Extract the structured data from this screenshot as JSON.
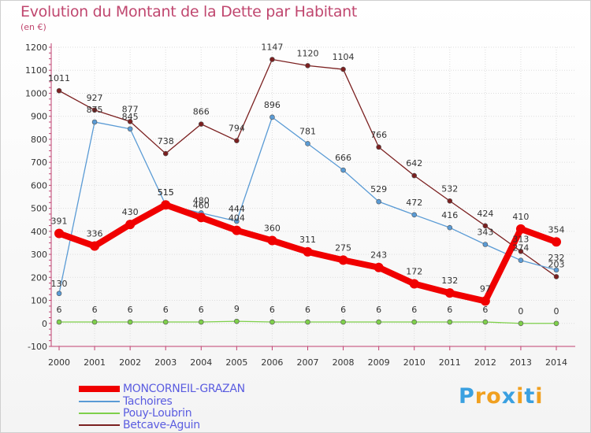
{
  "chart_data": {
    "type": "line",
    "title": "Evolution du Montant de la Dette par Habitant",
    "subtitle": "(en €)",
    "xlabel": "",
    "ylabel": "",
    "x": [
      "2000",
      "2001",
      "2002",
      "2003",
      "2004",
      "2005",
      "2006",
      "2007",
      "2008",
      "2009",
      "2010",
      "2011",
      "2012",
      "2013",
      "2014"
    ],
    "ylim": [
      -100,
      1200
    ],
    "yticks": [
      "-100",
      "0",
      "100",
      "200",
      "300",
      "400",
      "500",
      "600",
      "700",
      "800",
      "900",
      "1000",
      "1100",
      "1200"
    ],
    "grid": true,
    "legend": "bottom-left",
    "series": [
      {
        "name": "MONCORNEIL-GRAZAN",
        "color": "#f00000",
        "values": [
          391,
          336,
          430,
          515,
          460,
          404,
          360,
          311,
          275,
          243,
          172,
          132,
          97,
          410,
          354
        ]
      },
      {
        "name": "Tachoires",
        "color": "#5a9bd5",
        "values": [
          130,
          875,
          845,
          515,
          480,
          444,
          896,
          781,
          666,
          529,
          472,
          416,
          343,
          274,
          232
        ]
      },
      {
        "name": "Pouy-Loubrin",
        "color": "#7ed04a",
        "values": [
          6,
          6,
          6,
          6,
          6,
          9,
          6,
          6,
          6,
          6,
          6,
          6,
          6,
          0,
          0
        ]
      },
      {
        "name": "Betcave-Aguin",
        "color": "#7b2020",
        "values": [
          1011,
          927,
          877,
          738,
          866,
          794,
          1147,
          1120,
          1104,
          766,
          642,
          532,
          424,
          313,
          203
        ]
      }
    ]
  },
  "logo": {
    "letters": [
      "P",
      "r",
      "o",
      "x",
      "i",
      "t",
      "i"
    ],
    "colors": [
      "#3aa0e0",
      "#f0a020",
      "#f0a020",
      "#3aa0e0",
      "#f0a020",
      "#3aa0e0",
      "#f0a020"
    ]
  }
}
